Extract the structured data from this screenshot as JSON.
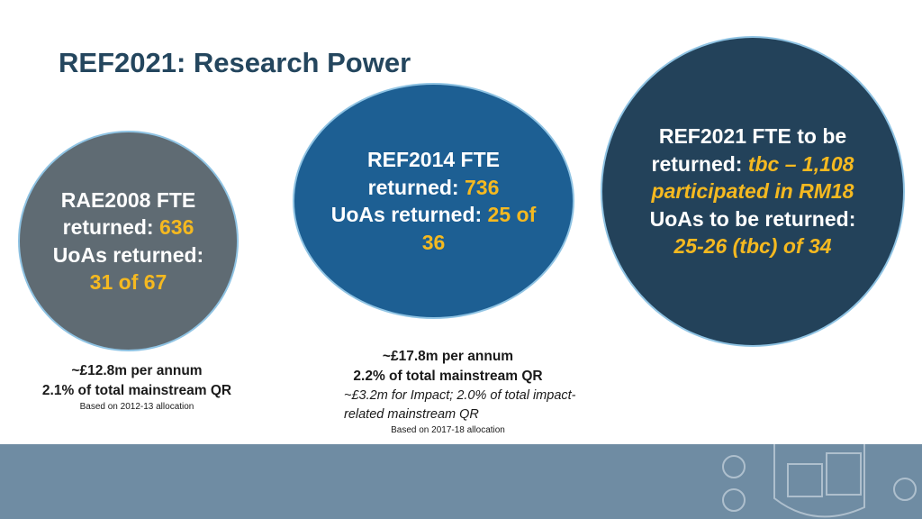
{
  "header": {
    "title": "REF2021: Research Power"
  },
  "circles": [
    {
      "segments": [
        {
          "text": "RAE2008 FTE returned:",
          "highlight": false
        },
        {
          "text": "636",
          "highlight": true
        },
        {
          "text": "UoAs returned:",
          "highlight": false
        },
        {
          "text": "31 of 67",
          "highlight": true
        }
      ]
    },
    {
      "segments": [
        {
          "text": "REF2014 FTE returned:",
          "highlight": false
        },
        {
          "text": "736",
          "highlight": true
        },
        {
          "text": "UoAs returned:",
          "highlight": false
        },
        {
          "text": "25 of 36",
          "highlight": true
        }
      ]
    },
    {
      "segments": [
        {
          "text": "REF2021 FTE to be returned:",
          "highlight": false
        },
        {
          "text": "tbc – 1,108 participated in RM18",
          "highlight": true
        },
        {
          "text": "UoAs to be returned:",
          "highlight": false
        },
        {
          "text": "25-26 (tbc) of 34",
          "highlight": true
        }
      ]
    }
  ],
  "captions": [
    {
      "lines": [
        "~£12.8m per annum",
        "2.1% of total mainstream QR"
      ],
      "note": "Based on 2012-13 allocation"
    },
    {
      "lines": [
        "~£17.8m per annum",
        "2.2% of total mainstream QR"
      ],
      "impact": "~£3.2m for Impact; 2.0% of total impact-related mainstream QR",
      "note": "Based on 2017-18 allocation"
    }
  ]
}
